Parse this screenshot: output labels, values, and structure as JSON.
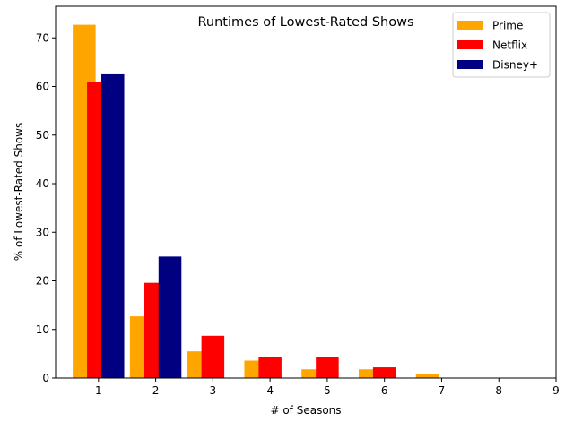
{
  "chart_data": {
    "type": "bar",
    "title": "Runtimes of Lowest-Rated Shows",
    "xlabel": "# of Seasons",
    "ylabel": "% of Lowest-Rated Shows",
    "x_ticks": [
      1,
      2,
      3,
      4,
      5,
      6,
      7,
      8,
      9
    ],
    "y_ticks": [
      0,
      10,
      20,
      30,
      40,
      50,
      60,
      70
    ],
    "xlim": [
      0.25,
      9.0
    ],
    "ylim": [
      0,
      76.5
    ],
    "legend_position": "top-right",
    "grid": false,
    "series": [
      {
        "name": "Prime",
        "color": "#ffa500",
        "x": [
          1,
          2,
          3,
          4,
          5,
          6,
          7
        ],
        "values": [
          72.7,
          12.7,
          5.5,
          3.6,
          1.8,
          1.8,
          0.9
        ]
      },
      {
        "name": "Netflix",
        "color": "#ff0000",
        "x": [
          1,
          2,
          3,
          4,
          5,
          6
        ],
        "values": [
          60.9,
          19.6,
          8.7,
          4.3,
          4.3,
          2.2
        ]
      },
      {
        "name": "Disney+",
        "color": "#000080",
        "x": [
          1,
          2
        ],
        "values": [
          62.5,
          25.0
        ]
      }
    ]
  }
}
